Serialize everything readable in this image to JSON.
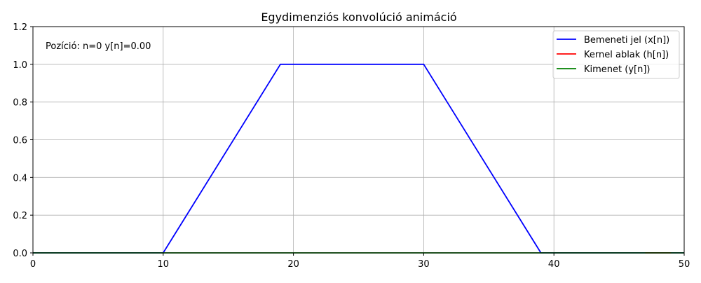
{
  "chart_data": {
    "type": "line",
    "title": "Egydimenziós konvolúció animáció",
    "xlabel": "",
    "ylabel": "",
    "xlim": [
      0,
      50
    ],
    "ylim": [
      0,
      1.2
    ],
    "xticks": [
      0,
      10,
      20,
      30,
      40,
      50
    ],
    "xtick_labels": [
      "0",
      "10",
      "20",
      "30",
      "40",
      "50"
    ],
    "yticks": [
      0,
      0.2,
      0.4,
      0.6,
      0.8,
      1.0,
      1.2
    ],
    "ytick_labels": [
      "0.0",
      "0.2",
      "0.4",
      "0.6",
      "0.8",
      "1.0",
      "1.2"
    ],
    "grid": true,
    "legend_position": "top-right",
    "annotation": "Pozíció: n=0   y[n]=0.00",
    "series": [
      {
        "name": "Bemeneti jel (x[n])",
        "color": "#0000ff",
        "x": [
          0,
          10,
          19,
          30,
          39,
          50
        ],
        "y": [
          0,
          0,
          1,
          1,
          0,
          0
        ]
      },
      {
        "name": "Kernel ablak (h[n])",
        "color": "#ff0000",
        "x": [
          47,
          49
        ],
        "y": [
          0,
          0
        ]
      },
      {
        "name": "Kimenet (y[n])",
        "color": "#008000",
        "x": [
          0,
          50
        ],
        "y": [
          0,
          0
        ]
      }
    ]
  }
}
